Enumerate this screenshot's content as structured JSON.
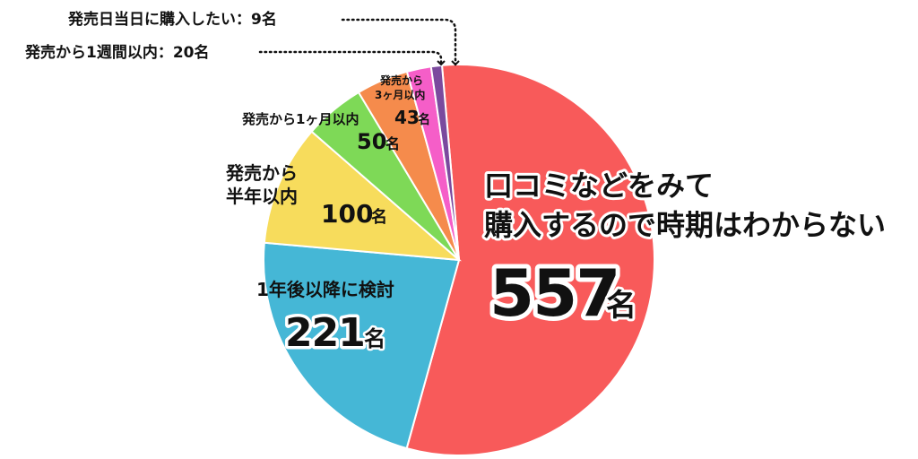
{
  "chart_data": {
    "type": "pie",
    "title": "",
    "unit": "名",
    "slices": [
      {
        "name": "口コミなどをみて購入するので時期はわからない",
        "line1": "口コミなどをみて",
        "line2": "購入するので時期はわからない",
        "value": 557,
        "value_label": "557",
        "color": "#f85a5a"
      },
      {
        "name": "1年後以降に検討",
        "line1": "1年後以降に検討",
        "line2": "",
        "value": 221,
        "value_label": "221",
        "color": "#45b7d6"
      },
      {
        "name": "発売から半年以内",
        "line1": "発売から",
        "line2": "半年以内",
        "value": 100,
        "value_label": "100",
        "color": "#f7dc5c"
      },
      {
        "name": "発売から1ヶ月以内",
        "line1": "発売から1ヶ月以内",
        "line2": "",
        "value": 50,
        "value_label": "50",
        "color": "#7ed957"
      },
      {
        "name": "発売から3ヶ月以内",
        "line1": "発売から",
        "line2": "3ヶ月以内",
        "value": 43,
        "value_label": "43",
        "color": "#f58b4c"
      },
      {
        "name": "発売から1週間以内",
        "line1": "発売から1週間以内：20名",
        "line2": "",
        "value": 20,
        "value_label": "",
        "color": "#f55ec8"
      },
      {
        "name": "発売日当日に購入したい",
        "line1": "発売日当日に購入したい：9名",
        "line2": "",
        "value": 9,
        "value_label": "",
        "color": "#7b4a9e"
      }
    ]
  }
}
